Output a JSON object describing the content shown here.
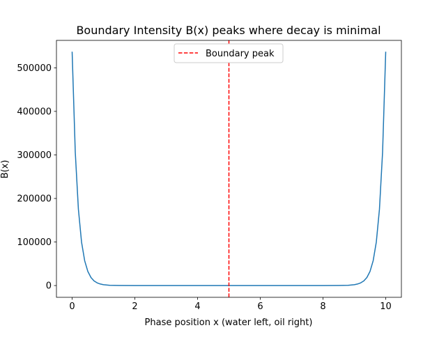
{
  "chart_data": {
    "type": "line",
    "title": "Boundary Intensity B(x) peaks where decay is minimal",
    "xlabel": "Phase position x (water left, oil right)",
    "ylabel": "B(x)",
    "xlim": [
      -0.5,
      10.5
    ],
    "ylim": [
      -27000,
      563000
    ],
    "xticks": [
      0,
      2,
      4,
      6,
      8,
      10
    ],
    "xtick_labels": [
      "0",
      "2",
      "4",
      "6",
      "8",
      "10"
    ],
    "yticks": [
      0,
      100000,
      200000,
      300000,
      400000,
      500000
    ],
    "ytick_labels": [
      "0",
      "100000",
      "200000",
      "300000",
      "400000",
      "500000"
    ],
    "grid": false,
    "legend_position": "top-center",
    "series": [
      {
        "name": "B(x)",
        "color": "#1f77b4",
        "x": [
          0,
          0.1,
          0.2,
          0.3,
          0.4,
          0.5,
          0.6,
          0.7,
          0.8,
          0.9,
          1.0,
          1.2,
          1.5,
          2,
          3,
          4,
          5,
          6,
          7,
          8,
          8.5,
          8.8,
          9.0,
          9.1,
          9.2,
          9.3,
          9.4,
          9.5,
          9.6,
          9.7,
          9.8,
          9.9,
          10
        ],
        "y": [
          537000,
          306600,
          175100,
          100000,
          57100,
          32600,
          18600,
          10600,
          6100,
          3500,
          2000,
          650,
          120,
          7,
          0,
          0,
          0,
          0,
          0,
          7,
          120,
          650,
          2000,
          3500,
          6100,
          10600,
          18600,
          32600,
          57100,
          100000,
          175100,
          306600,
          537000
        ]
      }
    ],
    "vline": {
      "name": "Boundary peak",
      "x": 5,
      "color": "#ff0000",
      "style": "dashed"
    },
    "legend": [
      "Boundary peak"
    ]
  }
}
